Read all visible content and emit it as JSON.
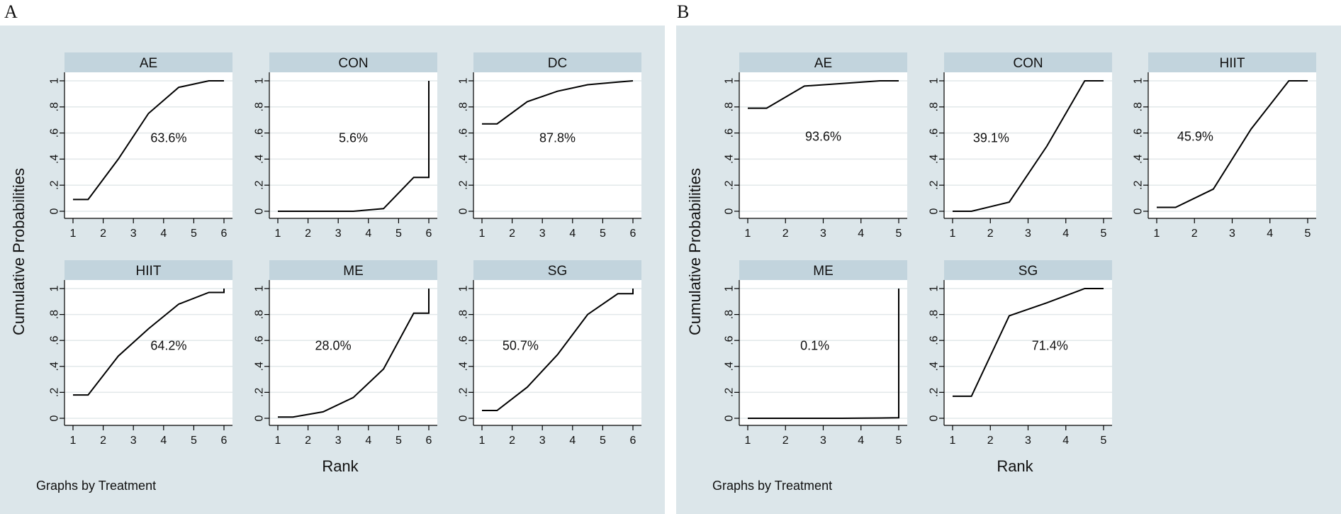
{
  "chart_data": [
    {
      "panel_label": "A",
      "type": "line",
      "ylabel": "Cumulative Probabilities",
      "xlabel": "Rank",
      "note": "Graphs by Treatment",
      "xlim": [
        1,
        6
      ],
      "ylim": [
        0,
        1
      ],
      "x_ticks": [
        "1",
        "2",
        "3",
        "4",
        "5",
        "6"
      ],
      "y_ticks": [
        "0",
        ".2",
        ".4",
        ".6",
        ".8",
        "1"
      ],
      "facets": [
        {
          "name": "AE",
          "sucra": "63.6%",
          "x": [
            1,
            1.5,
            2.5,
            3.5,
            4.5,
            5.5,
            6
          ],
          "y": [
            0.09,
            0.09,
            0.4,
            0.75,
            0.95,
            1.0,
            1.0
          ]
        },
        {
          "name": "CON",
          "sucra": "5.6%",
          "x": [
            1,
            1.5,
            2.5,
            3.5,
            4.5,
            5.5,
            6,
            6
          ],
          "y": [
            0.0,
            0.0,
            0.0,
            0.0,
            0.02,
            0.26,
            0.26,
            1.0
          ]
        },
        {
          "name": "DC",
          "sucra": "87.8%",
          "x": [
            1,
            1.5,
            2.5,
            3.5,
            4.5,
            5.5,
            6
          ],
          "y": [
            0.67,
            0.67,
            0.84,
            0.92,
            0.97,
            0.99,
            1.0
          ]
        },
        {
          "name": "HIIT",
          "sucra": "64.2%",
          "x": [
            1,
            1.5,
            2.5,
            3.5,
            4.5,
            5.5,
            6,
            6
          ],
          "y": [
            0.18,
            0.18,
            0.48,
            0.69,
            0.88,
            0.97,
            0.97,
            1.0
          ]
        },
        {
          "name": "ME",
          "sucra": "28.0%",
          "x": [
            1,
            1.5,
            2.5,
            3.5,
            4.5,
            5.5,
            6,
            6
          ],
          "y": [
            0.01,
            0.01,
            0.05,
            0.16,
            0.38,
            0.81,
            0.81,
            1.0
          ]
        },
        {
          "name": "SG",
          "sucra": "50.7%",
          "x": [
            1,
            1.5,
            2.5,
            3.5,
            4.5,
            5.5,
            6,
            6
          ],
          "y": [
            0.06,
            0.06,
            0.24,
            0.49,
            0.8,
            0.96,
            0.96,
            1.0
          ]
        }
      ]
    },
    {
      "panel_label": "B",
      "type": "line",
      "ylabel": "Cumulative Probabilities",
      "xlabel": "Rank",
      "note": "Graphs by Treatment",
      "xlim": [
        1,
        5
      ],
      "ylim": [
        0,
        1
      ],
      "x_ticks": [
        "1",
        "2",
        "3",
        "4",
        "5"
      ],
      "y_ticks": [
        "0",
        ".2",
        ".4",
        ".6",
        ".8",
        "1"
      ],
      "facets": [
        {
          "name": "AE",
          "sucra": "93.6%",
          "x": [
            1,
            1.5,
            2.5,
            3.5,
            4.5,
            5
          ],
          "y": [
            0.79,
            0.79,
            0.96,
            0.98,
            1.0,
            1.0
          ]
        },
        {
          "name": "CON",
          "sucra": "39.1%",
          "x": [
            1,
            1.5,
            2.5,
            3.5,
            4.5,
            5
          ],
          "y": [
            0.0,
            0.0,
            0.07,
            0.5,
            1.0,
            1.0
          ]
        },
        {
          "name": "HIIT",
          "sucra": "45.9%",
          "x": [
            1,
            1.5,
            2.5,
            3.5,
            4.5,
            5
          ],
          "y": [
            0.03,
            0.03,
            0.17,
            0.63,
            1.0,
            1.0
          ]
        },
        {
          "name": "ME",
          "sucra": "0.1%",
          "x": [
            1,
            1.5,
            2.5,
            3.5,
            4.5,
            5,
            5
          ],
          "y": [
            0.0,
            0.0,
            0.0,
            0.0,
            0.002,
            0.004,
            1.0
          ]
        },
        {
          "name": "SG",
          "sucra": "71.4%",
          "x": [
            1,
            1.5,
            2.5,
            3.5,
            4.5,
            5
          ],
          "y": [
            0.17,
            0.17,
            0.79,
            0.89,
            1.0,
            1.0
          ]
        }
      ]
    }
  ]
}
